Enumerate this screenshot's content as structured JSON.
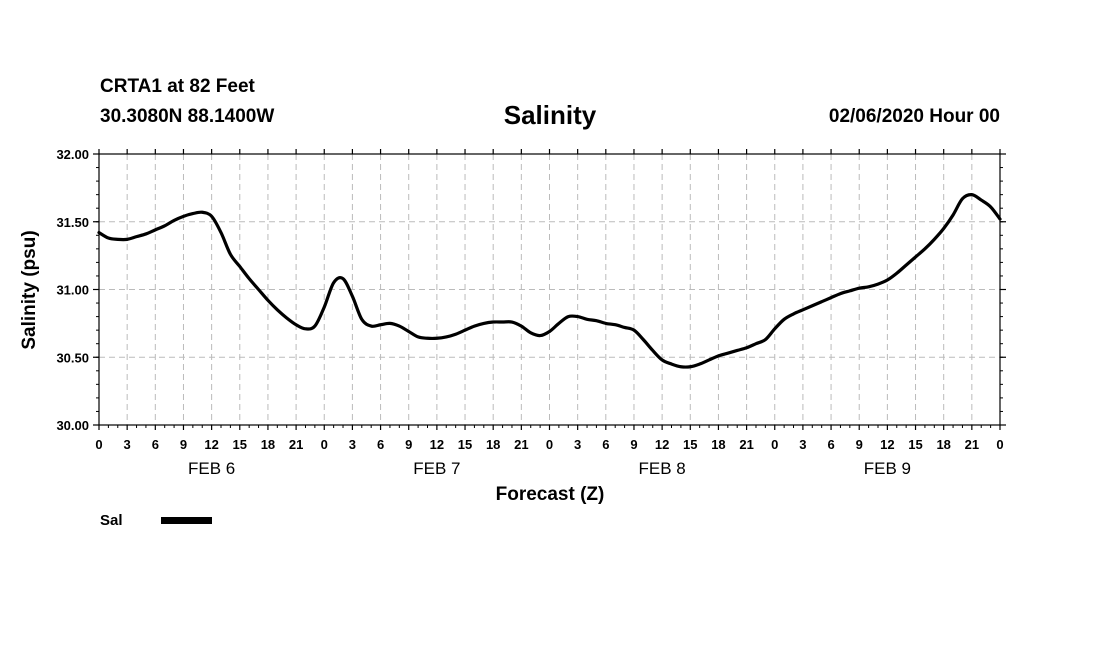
{
  "header": {
    "station": "CRTA1 at 82 Feet",
    "location": "30.3080N 88.1400W",
    "title": "Salinity",
    "run_date": "02/06/2020 Hour 00"
  },
  "chart_data": {
    "type": "line",
    "title": "Salinity",
    "xlabel": "Forecast (Z)",
    "ylabel": "Salinity (psu)",
    "ylim": [
      30.0,
      32.0
    ],
    "yticks": [
      "30.00",
      "30.50",
      "31.00",
      "31.50",
      "32.00"
    ],
    "xlim_hours": [
      0,
      96
    ],
    "xtick_labels": [
      "0",
      "3",
      "6",
      "9",
      "12",
      "15",
      "18",
      "21",
      "0",
      "3",
      "6",
      "9",
      "12",
      "15",
      "18",
      "21",
      "0",
      "3",
      "6",
      "9",
      "12",
      "15",
      "18",
      "21",
      "0",
      "3",
      "6",
      "9",
      "12",
      "15",
      "18",
      "21",
      "0"
    ],
    "day_labels": [
      {
        "label": "FEB 6",
        "hour": 12
      },
      {
        "label": "FEB 7",
        "hour": 36
      },
      {
        "label": "FEB 8",
        "hour": 60
      },
      {
        "label": "FEB 9",
        "hour": 84
      }
    ],
    "grid": true,
    "legend_position": "bottom-left",
    "series": [
      {
        "name": "Sal",
        "color": "#000000",
        "x_hours": [
          0,
          1,
          2,
          3,
          4,
          5,
          6,
          7,
          8,
          9,
          10,
          11,
          12,
          13,
          14,
          15,
          16,
          17,
          18,
          19,
          20,
          21,
          22,
          23,
          24,
          25,
          26,
          27,
          28,
          29,
          30,
          31,
          32,
          33,
          34,
          35,
          36,
          37,
          38,
          39,
          40,
          41,
          42,
          43,
          44,
          45,
          46,
          47,
          48,
          49,
          50,
          51,
          52,
          53,
          54,
          55,
          56,
          57,
          58,
          59,
          60,
          61,
          62,
          63,
          64,
          65,
          66,
          67,
          68,
          69,
          70,
          71,
          72,
          73,
          74,
          75,
          76,
          77,
          78,
          79,
          80,
          81,
          82,
          83,
          84,
          85,
          86,
          87,
          88,
          89,
          90,
          91,
          92,
          93,
          94,
          95,
          96
        ],
        "values": [
          31.42,
          31.38,
          31.37,
          31.37,
          31.39,
          31.41,
          31.44,
          31.47,
          31.51,
          31.54,
          31.56,
          31.57,
          31.54,
          31.42,
          31.26,
          31.17,
          31.08,
          31.0,
          30.92,
          30.85,
          30.79,
          30.74,
          30.71,
          30.73,
          30.87,
          31.05,
          31.08,
          30.95,
          30.78,
          30.73,
          30.74,
          30.75,
          30.73,
          30.69,
          30.65,
          30.64,
          30.64,
          30.65,
          30.67,
          30.7,
          30.73,
          30.75,
          30.76,
          30.76,
          30.76,
          30.73,
          30.68,
          30.66,
          30.69,
          30.75,
          30.8,
          30.8,
          30.78,
          30.77,
          30.75,
          30.74,
          30.72,
          30.7,
          30.63,
          30.55,
          30.48,
          30.45,
          30.43,
          30.43,
          30.45,
          30.48,
          30.51,
          30.53,
          30.55,
          30.57,
          30.6,
          30.63,
          30.71,
          30.78,
          30.82,
          30.85,
          30.88,
          30.91,
          30.94,
          30.97,
          30.99,
          31.01,
          31.02,
          31.04,
          31.07,
          31.12,
          31.18,
          31.24,
          31.3,
          31.37,
          31.45,
          31.55,
          31.67,
          31.7,
          31.66,
          31.61,
          31.52
        ]
      }
    ]
  }
}
